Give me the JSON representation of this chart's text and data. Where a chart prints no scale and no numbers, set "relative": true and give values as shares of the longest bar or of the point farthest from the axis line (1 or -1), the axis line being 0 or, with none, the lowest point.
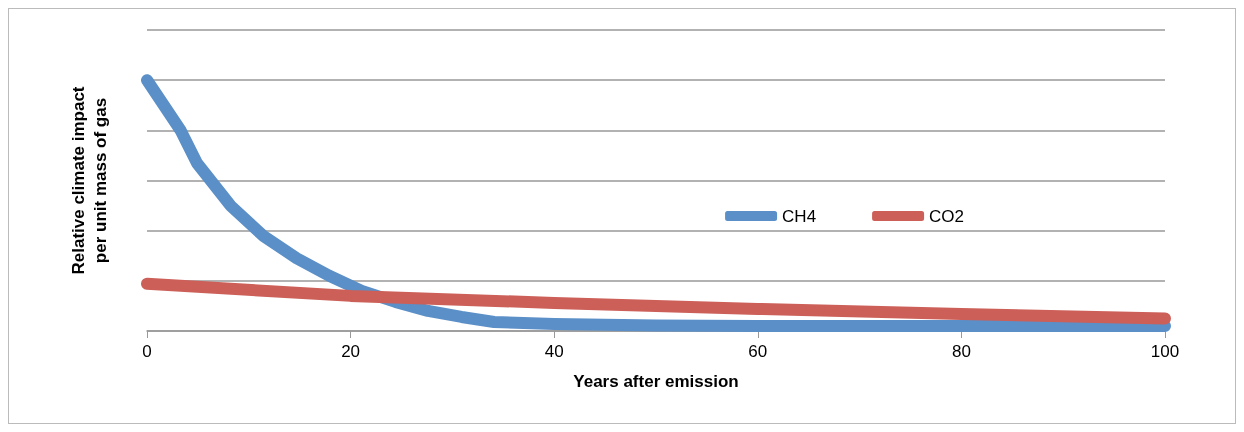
{
  "chart_data": {
    "type": "line",
    "relative": true,
    "xlabel": "Years after emission",
    "ylabel": "Relative climate impact\nper unit mass of gas",
    "xlim": [
      0,
      100
    ],
    "xticks": [
      0,
      20,
      40,
      60,
      80,
      100
    ],
    "grid": "y",
    "legend": "center",
    "marker": "none",
    "line_style": "solid",
    "series": [
      {
        "name": "CH4",
        "color": "#5b8fc7",
        "x": [
          0,
          3.3,
          4.9,
          8.2,
          11.4,
          14.7,
          17.9,
          21.1,
          24.4,
          27.6,
          30.9,
          34.1,
          40,
          50,
          60,
          80,
          100
        ],
        "values": [
          1,
          0.8,
          0.67,
          0.5,
          0.38,
          0.29,
          0.22,
          0.16,
          0.116,
          0.08,
          0.056,
          0.036,
          0.028,
          0.022,
          0.02,
          0.02,
          0.02
        ]
      },
      {
        "name": "CO2",
        "color": "#cc5f58",
        "x": [
          0,
          20,
          40,
          60,
          80,
          100
        ],
        "values": [
          0.188,
          0.14,
          0.112,
          0.088,
          0.068,
          0.05
        ]
      }
    ]
  }
}
